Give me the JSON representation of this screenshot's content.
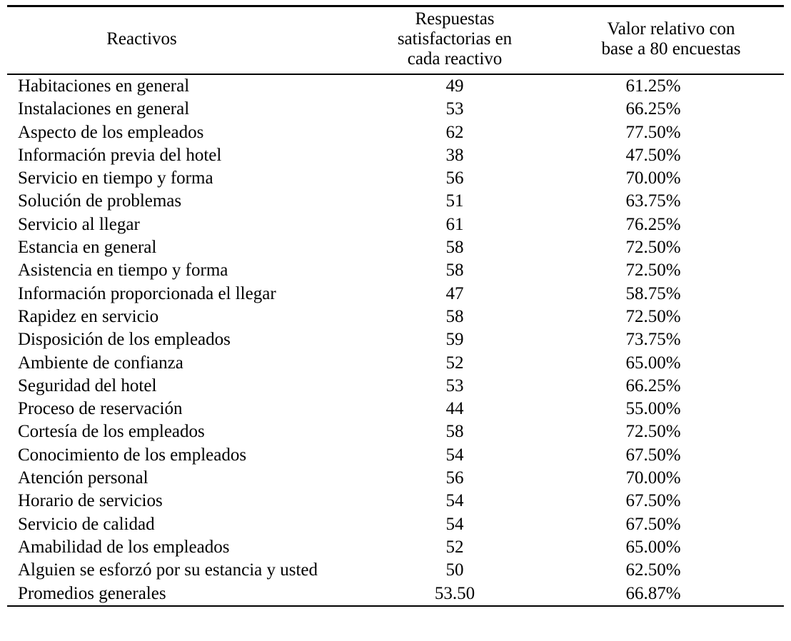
{
  "table": {
    "columns": [
      {
        "label": "Reactivos"
      },
      {
        "label": "Respuestas\nsatisfactorias en\ncada reactivo"
      },
      {
        "label": "Valor relativo con\nbase a 80 encuestas"
      }
    ],
    "rows": [
      {
        "reactivo": "Habitaciones en general",
        "respuestas": "49",
        "valor": "61.25%"
      },
      {
        "reactivo": "Instalaciones en general",
        "respuestas": "53",
        "valor": "66.25%"
      },
      {
        "reactivo": "Aspecto de los empleados",
        "respuestas": "62",
        "valor": "77.50%"
      },
      {
        "reactivo": "Información previa del hotel",
        "respuestas": "38",
        "valor": "47.50%"
      },
      {
        "reactivo": "Servicio en tiempo y forma",
        "respuestas": "56",
        "valor": "70.00%"
      },
      {
        "reactivo": "Solución de problemas",
        "respuestas": "51",
        "valor": "63.75%"
      },
      {
        "reactivo": "Servicio al llegar",
        "respuestas": "61",
        "valor": "76.25%"
      },
      {
        "reactivo": "Estancia en general",
        "respuestas": "58",
        "valor": "72.50%"
      },
      {
        "reactivo": "Asistencia en tiempo y forma",
        "respuestas": "58",
        "valor": "72.50%"
      },
      {
        "reactivo": "Información proporcionada el llegar",
        "respuestas": "47",
        "valor": "58.75%"
      },
      {
        "reactivo": "Rapidez en servicio",
        "respuestas": "58",
        "valor": "72.50%"
      },
      {
        "reactivo": "Disposición de los empleados",
        "respuestas": "59",
        "valor": "73.75%"
      },
      {
        "reactivo": "Ambiente de confianza",
        "respuestas": "52",
        "valor": "65.00%"
      },
      {
        "reactivo": "Seguridad del hotel",
        "respuestas": "53",
        "valor": "66.25%"
      },
      {
        "reactivo": "Proceso de reservación",
        "respuestas": "44",
        "valor": "55.00%"
      },
      {
        "reactivo": "Cortesía de los empleados",
        "respuestas": "58",
        "valor": "72.50%"
      },
      {
        "reactivo": "Conocimiento de los empleados",
        "respuestas": "54",
        "valor": "67.50%"
      },
      {
        "reactivo": "Atención personal",
        "respuestas": "56",
        "valor": "70.00%"
      },
      {
        "reactivo": "Horario de servicios",
        "respuestas": "54",
        "valor": "67.50%"
      },
      {
        "reactivo": "Servicio de calidad",
        "respuestas": "54",
        "valor": "67.50%"
      },
      {
        "reactivo": "Amabilidad de los empleados",
        "respuestas": "52",
        "valor": "65.00%"
      },
      {
        "reactivo": "Alguien se esforzó por su estancia y usted",
        "respuestas": "50",
        "valor": "62.50%"
      }
    ],
    "footer": {
      "reactivo": "Promedios generales",
      "respuestas": "53.50",
      "valor": "66.87%"
    }
  }
}
